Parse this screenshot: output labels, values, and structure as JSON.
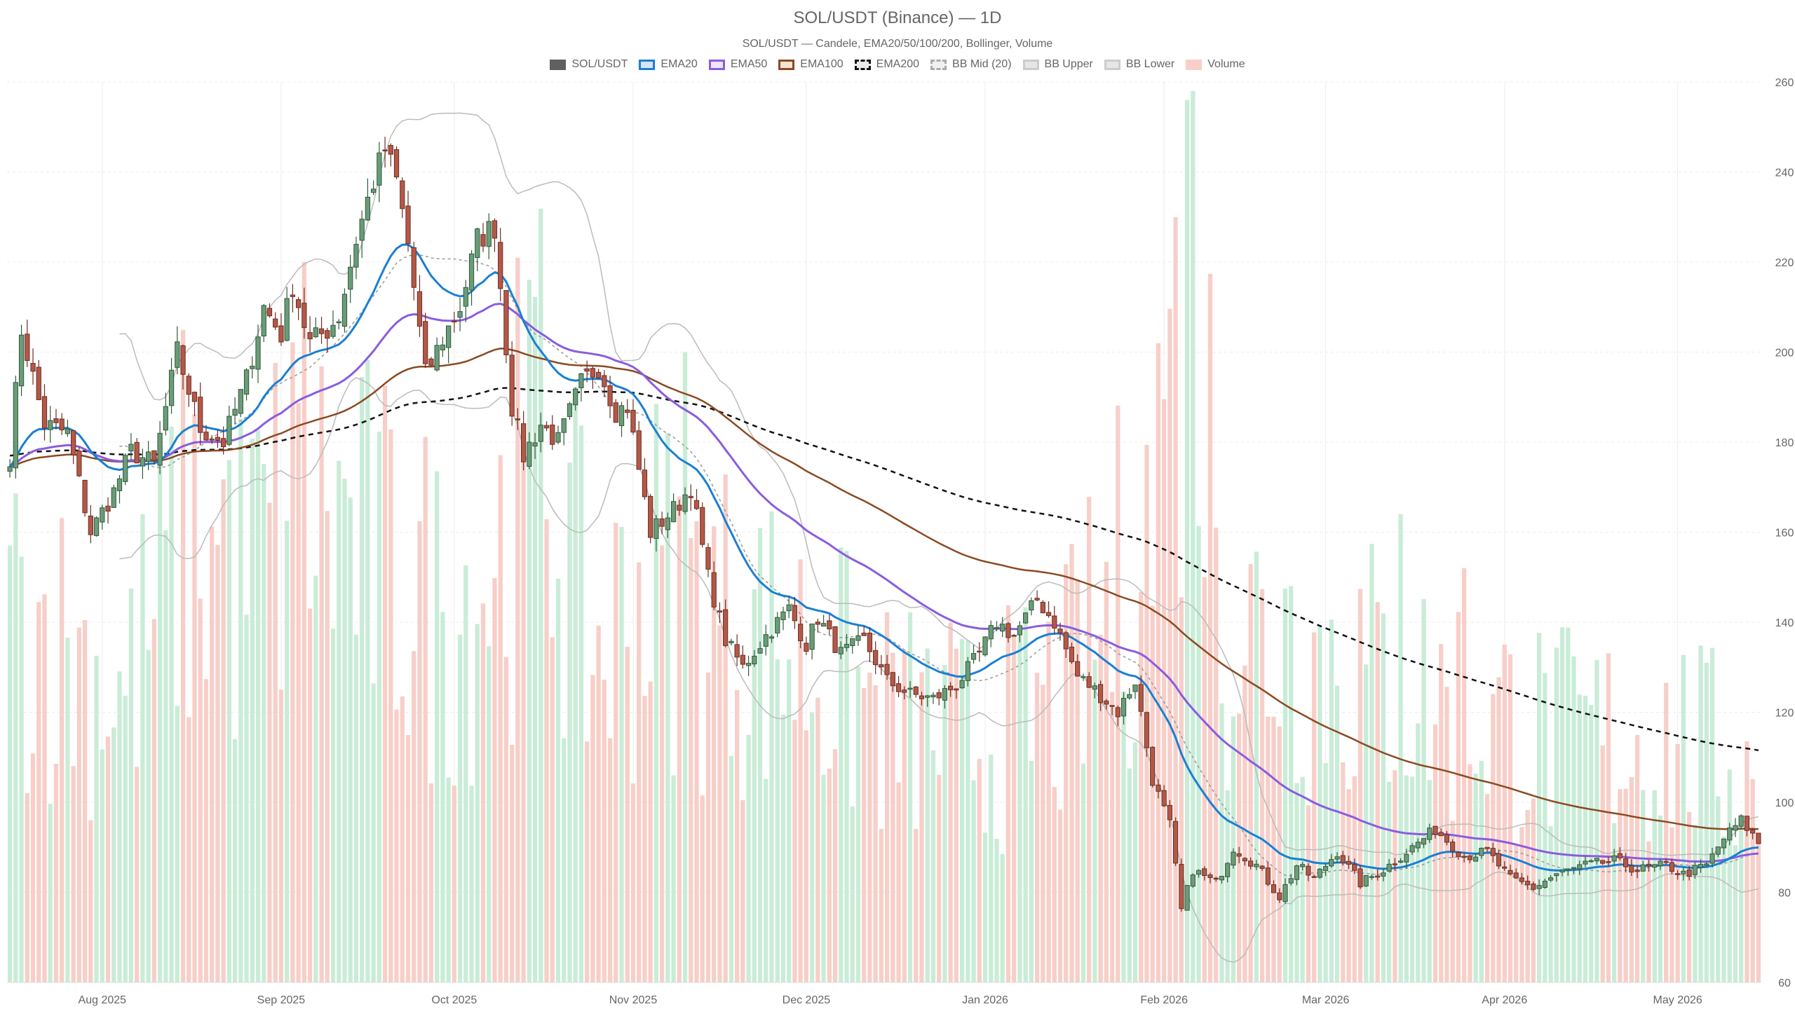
{
  "chart_data": {
    "type": "candlestick",
    "title": "SOL/USDT (Binance) — 1D",
    "subtitle": "SOL/USDT — Candele, EMA20/50/100/200, Bollinger, Volume",
    "legend": [
      {
        "name": "SOL/USDT",
        "fill": "#606060",
        "border": "#606060",
        "dash": false
      },
      {
        "name": "EMA20",
        "fill": "#d6e6f5",
        "border": "#1a7fd4",
        "dash": false
      },
      {
        "name": "EMA50",
        "fill": "#ede6fb",
        "border": "#8a5ce0",
        "dash": false
      },
      {
        "name": "EMA100",
        "fill": "#f2e4d8",
        "border": "#8b4a22",
        "dash": false
      },
      {
        "name": "EMA200",
        "fill": "#ececec",
        "border": "#111111",
        "dash": true
      },
      {
        "name": "BB Mid (20)",
        "fill": "#f0f0f0",
        "border": "#aaaaaa",
        "dash": true
      },
      {
        "name": "BB Upper",
        "fill": "#e6e6e6",
        "border": "#cccccc",
        "dash": false
      },
      {
        "name": "BB Lower",
        "fill": "#e6e6e6",
        "border": "#cccccc",
        "dash": false
      },
      {
        "name": "Volume",
        "fill": "#f7cfc8",
        "border": "#f7cfc8",
        "dash": false
      }
    ],
    "x_labels": [
      "Aug 2025",
      "Sep 2025",
      "Oct 2025",
      "Nov 2025",
      "Dec 2025",
      "Jan 2026",
      "Feb 2026",
      "Mar 2026",
      "Apr 2026",
      "May 2026"
    ],
    "x_range": [
      "2025-07-16",
      "2026-05-15"
    ],
    "y_ticks": [
      60,
      80,
      100,
      120,
      140,
      160,
      180,
      200,
      220,
      240,
      260
    ],
    "ylim": [
      60,
      260
    ],
    "grid": true,
    "colors": {
      "up_body": "#6a9c78",
      "up_border": "#2e5a3a",
      "down_body": "#b35848",
      "down_border": "#6e2d22",
      "vol_up": "#c9ecd7",
      "vol_down": "#f7cfc8",
      "ema20": "#1a7fd4",
      "ema50": "#8a5ce0",
      "ema100": "#8b4a22",
      "ema200": "#111111",
      "bb_mid": "#999999",
      "bb_band": "#bbbbbb"
    },
    "price_anchors": [
      [
        "2025-07-16",
        177
      ],
      [
        "2025-07-18",
        205
      ],
      [
        "2025-07-22",
        184
      ],
      [
        "2025-07-26",
        182
      ],
      [
        "2025-07-30",
        160
      ],
      [
        "2025-08-03",
        169
      ],
      [
        "2025-08-06",
        178
      ],
      [
        "2025-08-10",
        175
      ],
      [
        "2025-08-14",
        200
      ],
      [
        "2025-08-18",
        183
      ],
      [
        "2025-08-22",
        180
      ],
      [
        "2025-08-26",
        194
      ],
      [
        "2025-08-29",
        210
      ],
      [
        "2025-09-01",
        204
      ],
      [
        "2025-09-03",
        215
      ],
      [
        "2025-09-06",
        202
      ],
      [
        "2025-09-09",
        205
      ],
      [
        "2025-09-11",
        208
      ],
      [
        "2025-09-14",
        225
      ],
      [
        "2025-09-17",
        238
      ],
      [
        "2025-09-19",
        245
      ],
      [
        "2025-09-21",
        238
      ],
      [
        "2025-09-23",
        224
      ],
      [
        "2025-09-26",
        195
      ],
      [
        "2025-09-29",
        203
      ],
      [
        "2025-10-02",
        210
      ],
      [
        "2025-10-05",
        225
      ],
      [
        "2025-10-08",
        228
      ],
      [
        "2025-10-11",
        188
      ],
      [
        "2025-10-13",
        177
      ],
      [
        "2025-10-16",
        184
      ],
      [
        "2025-10-19",
        180
      ],
      [
        "2025-10-23",
        193
      ],
      [
        "2025-10-26",
        197
      ],
      [
        "2025-10-29",
        187
      ],
      [
        "2025-10-31",
        188
      ],
      [
        "2025-11-04",
        160
      ],
      [
        "2025-11-08",
        165
      ],
      [
        "2025-11-11",
        170
      ],
      [
        "2025-11-14",
        150
      ],
      [
        "2025-11-17",
        136
      ],
      [
        "2025-11-20",
        130
      ],
      [
        "2025-11-24",
        137
      ],
      [
        "2025-11-28",
        143
      ],
      [
        "2025-12-01",
        135
      ],
      [
        "2025-12-03",
        141
      ],
      [
        "2025-12-07",
        133
      ],
      [
        "2025-12-11",
        136
      ],
      [
        "2025-12-15",
        127
      ],
      [
        "2025-12-19",
        124
      ],
      [
        "2025-12-23",
        123
      ],
      [
        "2025-12-27",
        126
      ],
      [
        "2025-12-31",
        133
      ],
      [
        "2026-01-03",
        140
      ],
      [
        "2026-01-06",
        137
      ],
      [
        "2026-01-10",
        145
      ],
      [
        "2026-01-13",
        140
      ],
      [
        "2026-01-17",
        128
      ],
      [
        "2026-01-20",
        125
      ],
      [
        "2026-01-24",
        120
      ],
      [
        "2026-01-27",
        127
      ],
      [
        "2026-01-30",
        105
      ],
      [
        "2026-02-02",
        95
      ],
      [
        "2026-02-04",
        76
      ],
      [
        "2026-02-06",
        85
      ],
      [
        "2026-02-10",
        82
      ],
      [
        "2026-02-13",
        90
      ],
      [
        "2026-02-17",
        86
      ],
      [
        "2026-02-21",
        79
      ],
      [
        "2026-02-24",
        86
      ],
      [
        "2026-02-27",
        83
      ],
      [
        "2026-03-03",
        89
      ],
      [
        "2026-03-07",
        82
      ],
      [
        "2026-03-11",
        85
      ],
      [
        "2026-03-16",
        90
      ],
      [
        "2026-03-20",
        94
      ],
      [
        "2026-03-25",
        88
      ],
      [
        "2026-03-29",
        89
      ],
      [
        "2026-04-02",
        83
      ],
      [
        "2026-04-06",
        81
      ],
      [
        "2026-04-10",
        84
      ],
      [
        "2026-04-15",
        86
      ],
      [
        "2026-04-20",
        87
      ],
      [
        "2026-04-24",
        85
      ],
      [
        "2026-04-29",
        86
      ],
      [
        "2026-05-02",
        84
      ],
      [
        "2026-05-06",
        86
      ],
      [
        "2026-05-09",
        92
      ],
      [
        "2026-05-12",
        96
      ],
      [
        "2026-05-15",
        91
      ]
    ],
    "volume_anchors": [
      [
        "2025-07-20",
        0.45
      ],
      [
        "2025-08-05",
        0.35
      ],
      [
        "2025-08-15",
        0.55
      ],
      [
        "2025-08-25",
        0.5
      ],
      [
        "2025-09-05",
        0.6
      ],
      [
        "2025-09-20",
        0.5
      ],
      [
        "2025-10-01",
        0.45
      ],
      [
        "2025-10-10",
        0.55
      ],
      [
        "2025-10-15",
        0.7
      ],
      [
        "2025-10-25",
        0.4
      ],
      [
        "2025-11-05",
        0.5
      ],
      [
        "2025-11-15",
        0.45
      ],
      [
        "2025-12-01",
        0.4
      ],
      [
        "2025-12-15",
        0.32
      ],
      [
        "2026-01-01",
        0.3
      ],
      [
        "2026-01-15",
        0.35
      ],
      [
        "2026-02-01",
        0.6
      ],
      [
        "2026-02-05",
        0.95
      ],
      [
        "2026-02-12",
        0.45
      ],
      [
        "2026-03-01",
        0.4
      ],
      [
        "2026-03-20",
        0.35
      ],
      [
        "2026-04-10",
        0.3
      ],
      [
        "2026-05-01",
        0.3
      ],
      [
        "2026-05-15",
        0.25
      ]
    ],
    "volume_spikes": [
      [
        "2025-08-23",
        0.58
      ],
      [
        "2025-09-05",
        0.8
      ],
      [
        "2025-10-13",
        0.62
      ],
      [
        "2025-11-10",
        0.7
      ],
      [
        "2026-01-31",
        0.71
      ],
      [
        "2026-02-03",
        0.85
      ],
      [
        "2026-02-05",
        0.98
      ],
      [
        "2026-02-23",
        0.44
      ],
      [
        "2026-03-14",
        0.52
      ],
      [
        "2026-03-25",
        0.46
      ]
    ]
  }
}
